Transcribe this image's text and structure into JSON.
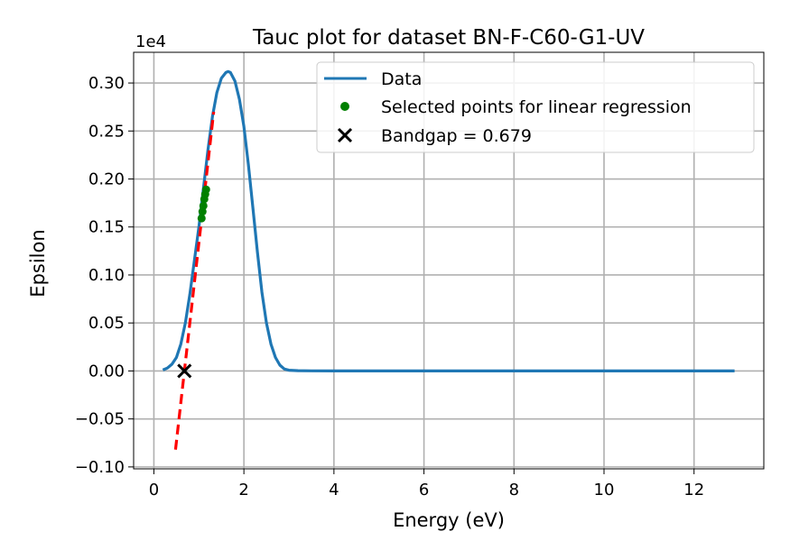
{
  "chart_data": {
    "type": "line",
    "title": "Tauc plot for dataset BN-F-C60-G1-UV",
    "xlabel": "Energy (eV)",
    "ylabel": "Epsilon",
    "y_multiplier_label": "1e4",
    "xlim": [
      -0.45,
      13.55
    ],
    "ylim": [
      -0.102,
      0.332
    ],
    "x_ticks": [
      0,
      2,
      4,
      6,
      8,
      10,
      12
    ],
    "x_tick_labels": [
      "0",
      "2",
      "4",
      "6",
      "8",
      "10",
      "12"
    ],
    "y_ticks": [
      -0.1,
      -0.05,
      0.0,
      0.05,
      0.1,
      0.15,
      0.2,
      0.25,
      0.3
    ],
    "y_tick_labels": [
      "−0.10",
      "−0.05",
      "0.00",
      "0.05",
      "0.10",
      "0.15",
      "0.20",
      "0.25",
      "0.30"
    ],
    "grid": true,
    "legend_position": "top-right",
    "series": [
      {
        "name": "Data",
        "kind": "line",
        "color": "#1f77b4",
        "x": [
          0.2,
          0.3,
          0.4,
          0.5,
          0.6,
          0.7,
          0.8,
          0.9,
          1.0,
          1.1,
          1.2,
          1.3,
          1.4,
          1.5,
          1.6,
          1.65,
          1.7,
          1.8,
          1.9,
          2.0,
          2.1,
          2.2,
          2.3,
          2.4,
          2.5,
          2.6,
          2.7,
          2.8,
          2.9,
          3.0,
          3.2,
          3.5,
          4.0,
          5.0,
          6.0,
          8.0,
          10.0,
          12.0,
          12.9
        ],
        "y": [
          0.001,
          0.003,
          0.007,
          0.014,
          0.028,
          0.05,
          0.08,
          0.115,
          0.15,
          0.19,
          0.23,
          0.265,
          0.29,
          0.305,
          0.311,
          0.312,
          0.311,
          0.302,
          0.283,
          0.255,
          0.215,
          0.17,
          0.124,
          0.082,
          0.05,
          0.028,
          0.014,
          0.006,
          0.002,
          0.0008,
          0.0003,
          0.0001,
          0.0,
          0.0,
          0.0,
          0.0,
          0.0,
          0.0,
          0.0
        ]
      },
      {
        "name": "Selected points for linear regression",
        "kind": "scatter",
        "color": "#008000",
        "x": [
          1.06,
          1.08,
          1.1,
          1.12,
          1.14,
          1.16
        ],
        "y": [
          0.159,
          0.166,
          0.172,
          0.179,
          0.184,
          0.189
        ]
      },
      {
        "name": "",
        "kind": "dashed-line",
        "color": "#ff0000",
        "x": [
          0.48,
          1.33
        ],
        "y": [
          -0.082,
          0.27
        ]
      },
      {
        "name": "Bandgap = 0.679",
        "kind": "marker-x",
        "color": "#000000",
        "x": [
          0.679
        ],
        "y": [
          0.0
        ]
      }
    ]
  }
}
